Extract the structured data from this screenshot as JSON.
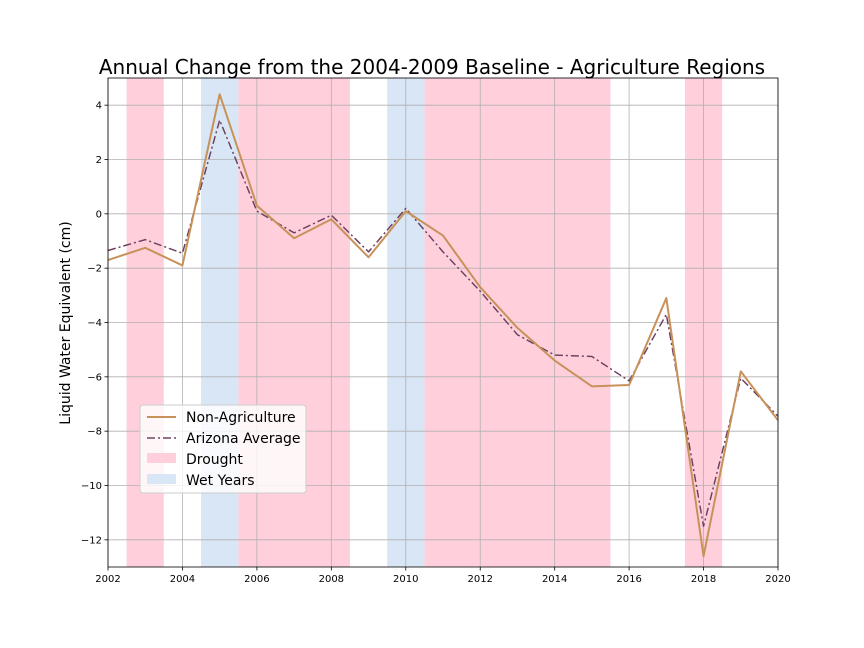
{
  "chart_data": {
    "type": "line",
    "title": "Annual Change from the 2004-2009 Baseline - Agriculture Regions",
    "ylabel": "Liquid Water Equivalent (cm)",
    "xlabel": "",
    "xlim": [
      2002,
      2020
    ],
    "ylim": [
      -13,
      5
    ],
    "xticks": [
      2002,
      2004,
      2006,
      2008,
      2010,
      2012,
      2014,
      2016,
      2018,
      2020
    ],
    "yticks": [
      -12,
      -10,
      -8,
      -6,
      -4,
      -2,
      0,
      2,
      4
    ],
    "grid": true,
    "legend_position": "lower-left",
    "x": [
      2002,
      2003,
      2004,
      2005,
      2006,
      2007,
      2008,
      2009,
      2010,
      2011,
      2012,
      2013,
      2014,
      2015,
      2016,
      2017,
      2018,
      2019,
      2020
    ],
    "series": [
      {
        "name": "Non-Agriculture",
        "style": "solid",
        "color": "#c8915a",
        "values": [
          -1.7,
          -1.25,
          -1.9,
          4.4,
          0.3,
          -0.9,
          -0.2,
          -1.6,
          0.1,
          -0.8,
          -2.7,
          -4.2,
          -5.4,
          -6.35,
          -6.3,
          -3.1,
          -12.6,
          -5.8,
          -7.6
        ]
      },
      {
        "name": "Arizona Average",
        "style": "dashdot",
        "color": "#8a4f7a",
        "values": [
          -1.35,
          -0.95,
          -1.45,
          3.45,
          0.1,
          -0.7,
          -0.05,
          -1.4,
          0.2,
          -1.4,
          -2.85,
          -4.45,
          -5.2,
          -5.25,
          -6.15,
          -3.7,
          -11.5,
          -6.05,
          -7.45
        ]
      }
    ],
    "bands": [
      {
        "name": "Drought",
        "color": "#ffd0dc",
        "ranges": [
          [
            2002.5,
            2003.5
          ],
          [
            2005.5,
            2008.5
          ],
          [
            2010.5,
            2015.5
          ],
          [
            2017.5,
            2018.5
          ]
        ]
      },
      {
        "name": "Wet Years",
        "color": "#d9e6f5",
        "ranges": [
          [
            2004.5,
            2005.5
          ],
          [
            2009.5,
            2010.5
          ]
        ]
      }
    ]
  }
}
